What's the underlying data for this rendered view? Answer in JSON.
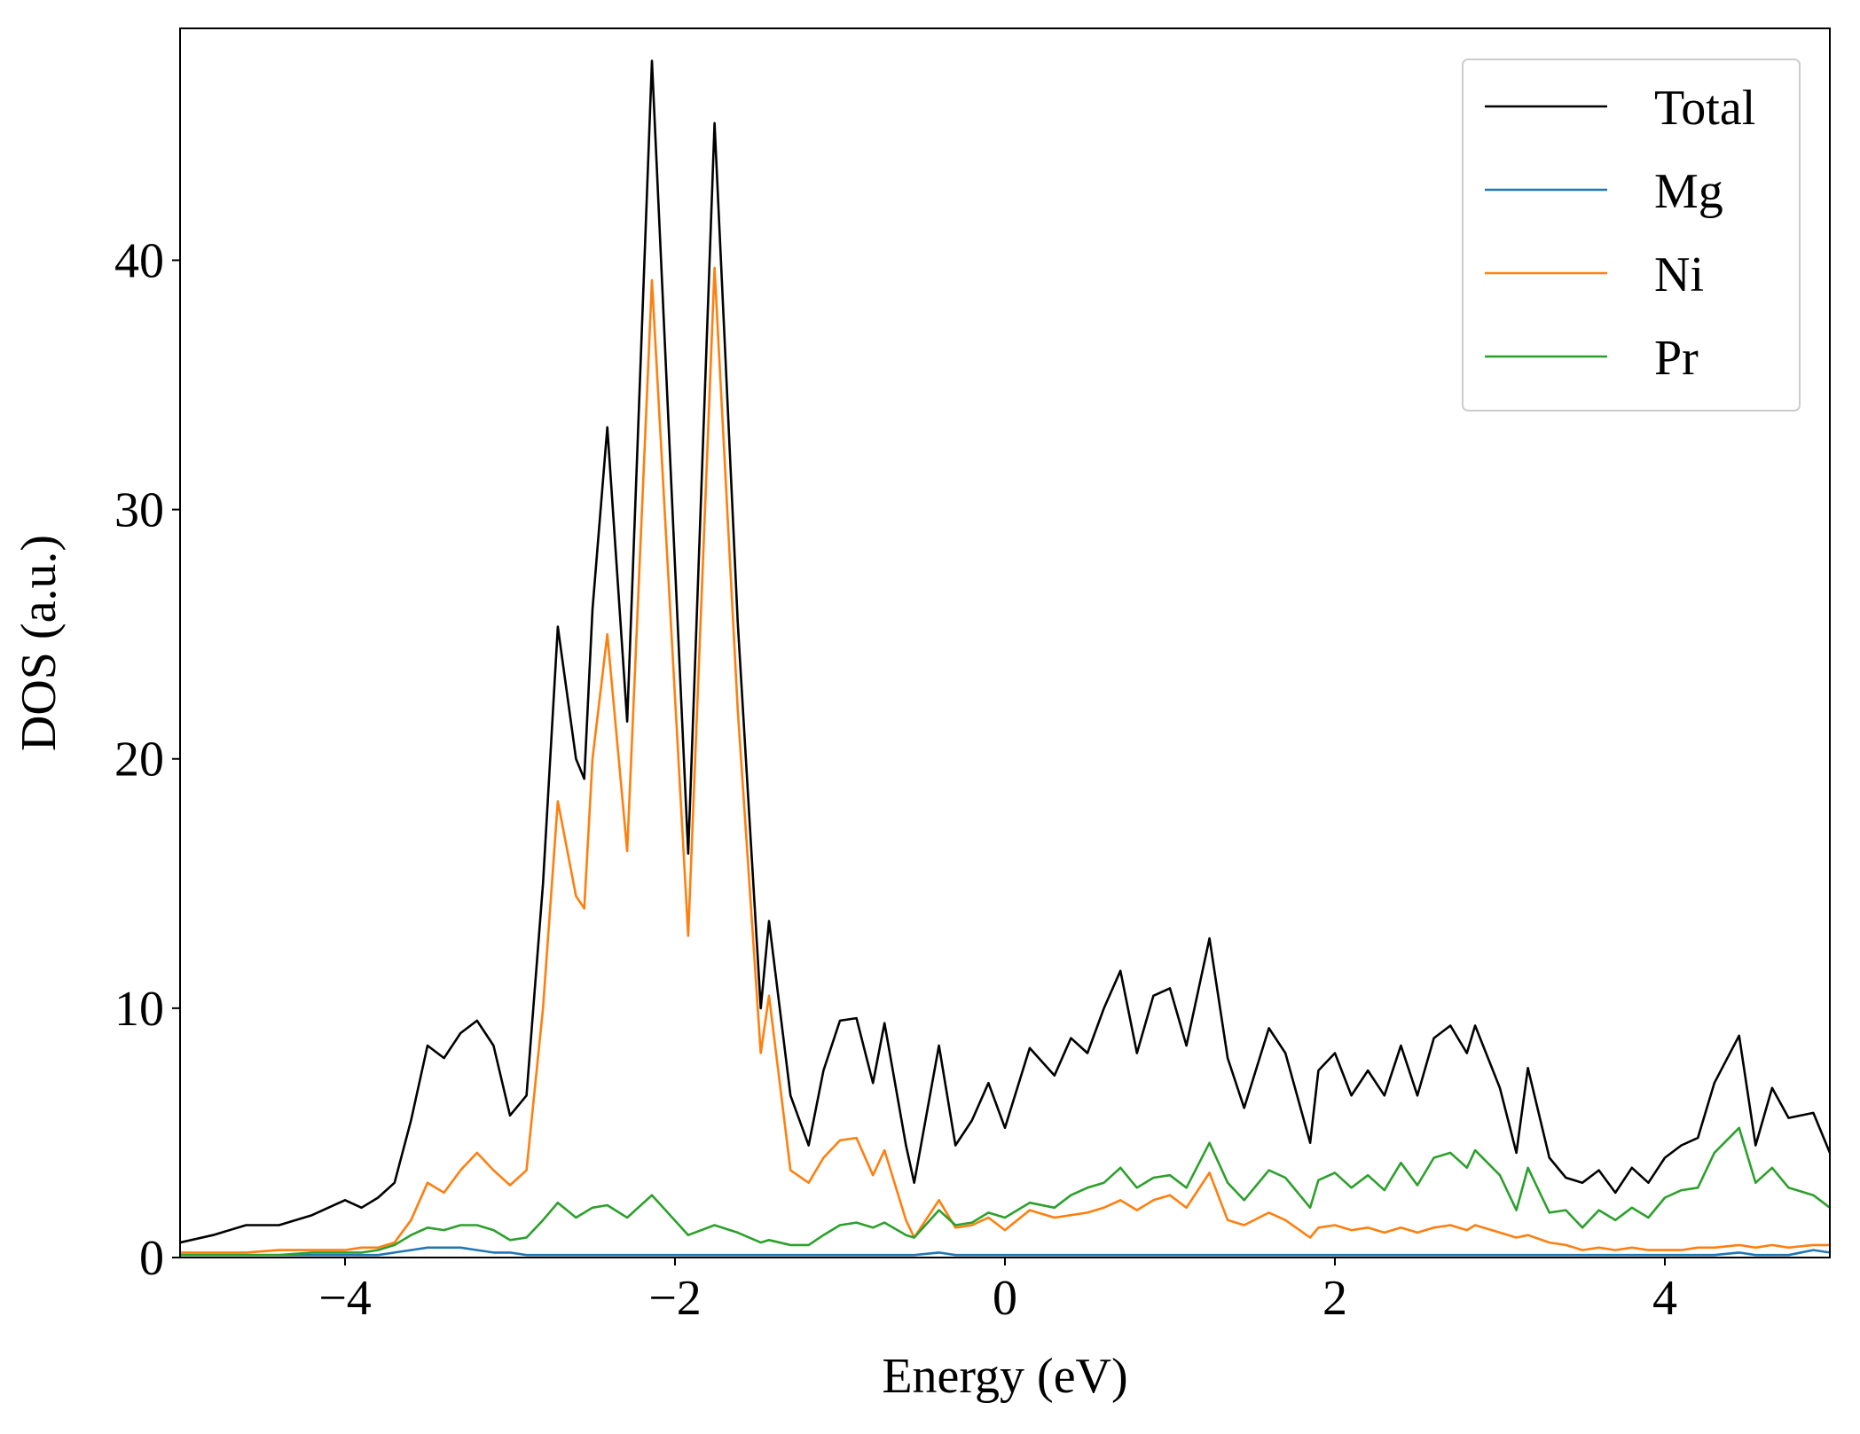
{
  "chart_data": {
    "type": "line",
    "xlabel": "Energy (eV)",
    "ylabel": "DOS (a.u.)",
    "xlim": [
      -5,
      5
    ],
    "ylim": [
      0,
      49.3
    ],
    "xticks": [
      {
        "value": -4,
        "label": "−4"
      },
      {
        "value": -2,
        "label": "−2"
      },
      0,
      2,
      4
    ],
    "yticks": [
      0,
      10,
      20,
      30,
      40
    ],
    "legend": "upper right",
    "x": [
      -5,
      -4.8,
      -4.6,
      -4.4,
      -4.2,
      -4.0,
      -3.9,
      -3.8,
      -3.7,
      -3.6,
      -3.5,
      -3.4,
      -3.3,
      -3.2,
      -3.1,
      -3.0,
      -2.9,
      -2.8,
      -2.71,
      -2.6,
      -2.55,
      -2.5,
      -2.41,
      -2.29,
      -2.14,
      -1.92,
      -1.76,
      -1.62,
      -1.48,
      -1.43,
      -1.3,
      -1.19,
      -1.1,
      -1.0,
      -0.9,
      -0.8,
      -0.73,
      -0.6,
      -0.55,
      -0.4,
      -0.3,
      -0.2,
      -0.1,
      0,
      0.15,
      0.3,
      0.4,
      0.5,
      0.6,
      0.7,
      0.8,
      0.9,
      1.0,
      1.1,
      1.24,
      1.35,
      1.45,
      1.6,
      1.7,
      1.85,
      1.9,
      2.0,
      2.1,
      2.2,
      2.3,
      2.4,
      2.5,
      2.6,
      2.7,
      2.8,
      2.85,
      3.0,
      3.1,
      3.17,
      3.3,
      3.4,
      3.5,
      3.6,
      3.7,
      3.8,
      3.9,
      4.0,
      4.1,
      4.2,
      4.3,
      4.45,
      4.55,
      4.65,
      4.75,
      4.9,
      5.0
    ],
    "series": [
      {
        "name": "Total",
        "color": "#000000",
        "values": [
          0.6,
          0.9,
          1.3,
          1.3,
          1.7,
          2.3,
          2.0,
          2.4,
          3.0,
          5.5,
          8.5,
          8.0,
          9.0,
          9.5,
          8.5,
          5.7,
          6.5,
          15,
          25.3,
          20,
          19.2,
          26,
          33.3,
          21.5,
          48,
          16.2,
          45.5,
          25.5,
          10,
          13.5,
          6.5,
          4.5,
          7.5,
          9.5,
          9.6,
          7,
          9.4,
          4.5,
          3,
          8.5,
          4.5,
          5.5,
          7,
          5.2,
          8.4,
          7.3,
          8.8,
          8.2,
          10,
          11.5,
          8.2,
          10.5,
          10.8,
          8.5,
          12.8,
          8,
          6,
          9.2,
          8.2,
          4.6,
          7.5,
          8.2,
          6.5,
          7.5,
          6.5,
          8.5,
          6.5,
          8.8,
          9.3,
          8.2,
          9.3,
          6.8,
          4.2,
          7.6,
          4,
          3.2,
          3.0,
          3.5,
          2.6,
          3.6,
          3.0,
          4.0,
          4.5,
          4.8,
          7.0,
          8.9,
          4.5,
          6.8,
          5.6,
          5.8,
          4.2
        ]
      },
      {
        "name": "Mg",
        "color": "#1f77b4",
        "values": [
          0.1,
          0.1,
          0.1,
          0.1,
          0.1,
          0.1,
          0.1,
          0.1,
          0.2,
          0.3,
          0.4,
          0.4,
          0.4,
          0.3,
          0.2,
          0.2,
          0.1,
          0.1,
          0.1,
          0.1,
          0.1,
          0.1,
          0.1,
          0.1,
          0.1,
          0.1,
          0.1,
          0.1,
          0.1,
          0.1,
          0.1,
          0.1,
          0.1,
          0.1,
          0.1,
          0.1,
          0.1,
          0.1,
          0.1,
          0.2,
          0.1,
          0.1,
          0.1,
          0.1,
          0.1,
          0.1,
          0.1,
          0.1,
          0.1,
          0.1,
          0.1,
          0.1,
          0.1,
          0.1,
          0.1,
          0.1,
          0.1,
          0.1,
          0.1,
          0.1,
          0.1,
          0.1,
          0.1,
          0.1,
          0.1,
          0.1,
          0.1,
          0.1,
          0.1,
          0.1,
          0.1,
          0.1,
          0.1,
          0.1,
          0.1,
          0.1,
          0.1,
          0.1,
          0.1,
          0.1,
          0.1,
          0.1,
          0.1,
          0.1,
          0.1,
          0.2,
          0.1,
          0.1,
          0.1,
          0.3,
          0.2
        ]
      },
      {
        "name": "Ni",
        "color": "#ff7f0e",
        "values": [
          0.2,
          0.2,
          0.2,
          0.3,
          0.3,
          0.3,
          0.4,
          0.4,
          0.6,
          1.5,
          3,
          2.6,
          3.5,
          4.2,
          3.5,
          2.9,
          3.5,
          10,
          18.3,
          14.5,
          14,
          20,
          25,
          16.3,
          39.2,
          12.9,
          39.7,
          22,
          8.2,
          10.5,
          3.5,
          3.0,
          4,
          4.7,
          4.8,
          3.3,
          4.3,
          1.5,
          0.8,
          2.3,
          1.2,
          1.3,
          1.6,
          1.1,
          1.9,
          1.6,
          1.7,
          1.8,
          2.0,
          2.3,
          1.9,
          2.3,
          2.5,
          2.0,
          3.4,
          1.5,
          1.3,
          1.8,
          1.5,
          0.8,
          1.2,
          1.3,
          1.1,
          1.2,
          1.0,
          1.2,
          1.0,
          1.2,
          1.3,
          1.1,
          1.3,
          1.0,
          0.8,
          0.9,
          0.6,
          0.5,
          0.3,
          0.4,
          0.3,
          0.4,
          0.3,
          0.3,
          0.3,
          0.4,
          0.4,
          0.5,
          0.4,
          0.5,
          0.4,
          0.5,
          0.5
        ]
      },
      {
        "name": "Pr",
        "color": "#2ca02c",
        "values": [
          0.1,
          0.1,
          0.1,
          0.1,
          0.2,
          0.2,
          0.2,
          0.3,
          0.5,
          0.9,
          1.2,
          1.1,
          1.3,
          1.3,
          1.1,
          0.7,
          0.8,
          1.5,
          2.2,
          1.6,
          1.8,
          2.0,
          2.1,
          1.6,
          2.5,
          0.9,
          1.3,
          1.0,
          0.6,
          0.7,
          0.5,
          0.5,
          0.9,
          1.3,
          1.4,
          1.2,
          1.4,
          0.9,
          0.8,
          1.9,
          1.3,
          1.4,
          1.8,
          1.6,
          2.2,
          2.0,
          2.5,
          2.8,
          3.0,
          3.6,
          2.8,
          3.2,
          3.3,
          2.8,
          4.6,
          3.0,
          2.3,
          3.5,
          3.2,
          2.0,
          3.1,
          3.4,
          2.8,
          3.3,
          2.7,
          3.8,
          2.9,
          4.0,
          4.2,
          3.6,
          4.3,
          3.3,
          1.9,
          3.6,
          1.8,
          1.9,
          1.2,
          1.9,
          1.5,
          2.0,
          1.6,
          2.4,
          2.7,
          2.8,
          4.2,
          5.2,
          3.0,
          3.6,
          2.8,
          2.5,
          2.0
        ]
      }
    ]
  }
}
